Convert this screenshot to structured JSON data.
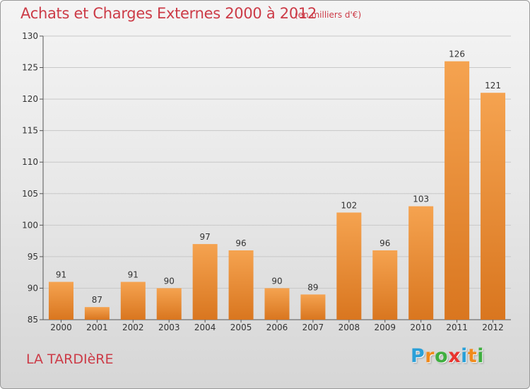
{
  "header": {
    "title": "Achats et Charges Externes 2000 à 2012",
    "unit": "(en milliers d'€)"
  },
  "footer": {
    "commune": "LA TARDIèRE",
    "logo_letters": [
      "P",
      "r",
      "o",
      "x",
      "i",
      "t",
      "i"
    ],
    "logo_colors": [
      "#2aa0d8",
      "#f08a1c",
      "#3fae3f",
      "#e8342f",
      "#2aa0d8",
      "#f08a1c",
      "#3fae3f"
    ]
  },
  "colors": {
    "bar_light": "#f5a350",
    "bar_dark": "#d9761f",
    "title": "#cc3b47"
  },
  "chart_data": {
    "type": "bar",
    "title": "Achats et Charges Externes 2000 à 2012",
    "subtitle": "(en milliers d'€)",
    "xlabel": "",
    "ylabel": "",
    "categories": [
      "2000",
      "2001",
      "2002",
      "2003",
      "2004",
      "2005",
      "2006",
      "2007",
      "2008",
      "2009",
      "2010",
      "2011",
      "2012"
    ],
    "values": [
      91,
      87,
      91,
      90,
      97,
      96,
      90,
      89,
      102,
      96,
      103,
      126,
      121
    ],
    "ylim": [
      85,
      130
    ],
    "yticks": [
      85,
      90,
      95,
      100,
      105,
      110,
      115,
      120,
      125,
      130
    ],
    "grid": true,
    "legend": "none"
  }
}
